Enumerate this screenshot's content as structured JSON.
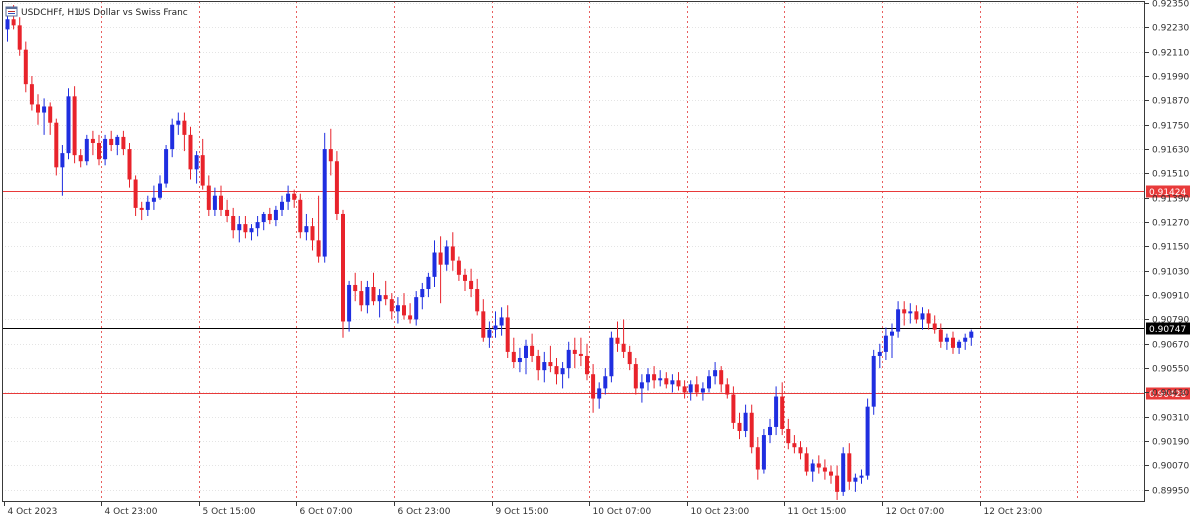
{
  "header": {
    "symbol_period": "USDCHFf, H1:",
    "description": "US Dollar vs Swiss Franc"
  },
  "icons": {
    "chart_menu": "chart-window-icon"
  },
  "colors": {
    "bull": "#1f2ee0",
    "bear": "#e8232b",
    "vgrid": "#e86060",
    "hgrid": "#e4e4e4",
    "axis": "#3a3a3a",
    "level": "#e83a3a",
    "current": "#000000"
  },
  "chart_data": {
    "type": "candlestick",
    "title": "USDCHFf, H1: US Dollar vs Swiss Franc",
    "symbol": "USDCHFf",
    "timeframe": "H1",
    "ylim": [
      0.8989,
      0.9236
    ],
    "y_ticks": [
      0.9235,
      0.9223,
      0.9211,
      0.9199,
      0.9187,
      0.9175,
      0.9163,
      0.9151,
      0.9139,
      0.9127,
      0.9115,
      0.9103,
      0.9091,
      0.9079,
      0.9067,
      0.9055,
      0.9043,
      0.9031,
      0.9019,
      0.9007,
      0.8995
    ],
    "y_tick_labels": [
      "0.92350",
      "0.92230",
      "0.92110",
      "0.91990",
      "0.91870",
      "0.91750",
      "0.91630",
      "0.91510",
      "0.91390",
      "0.91270",
      "0.91150",
      "0.91030",
      "0.90910",
      "0.90790",
      "0.90670",
      "0.90550",
      "0.90430",
      "0.90310",
      "0.90190",
      "0.90070",
      "0.89950"
    ],
    "x_labels": [
      {
        "index": 0,
        "label": "4 Oct 2023"
      },
      {
        "index": 16,
        "label": "4 Oct 23:00"
      },
      {
        "index": 32,
        "label": "5 Oct 15:00"
      },
      {
        "index": 48,
        "label": "6 Oct 07:00"
      },
      {
        "index": 64,
        "label": "6 Oct 23:00"
      },
      {
        "index": 80,
        "label": "9 Oct 15:00"
      },
      {
        "index": 96,
        "label": "10 Oct 07:00"
      },
      {
        "index": 112,
        "label": "10 Oct 23:00"
      },
      {
        "index": 128,
        "label": "11 Oct 15:00"
      },
      {
        "index": 144,
        "label": "12 Oct 07:00"
      },
      {
        "index": 160,
        "label": "12 Oct 23:00"
      }
    ],
    "levels": [
      {
        "value": 0.91424,
        "label": "0.91424",
        "style": "red"
      },
      {
        "value": 0.90747,
        "label": "0.90747",
        "style": "black"
      },
      {
        "value": 0.90428,
        "label": "0.90428",
        "style": "red"
      }
    ],
    "grid": "dotted",
    "candles": [
      [
        0.9222,
        0.923,
        0.9216,
        0.9227
      ],
      [
        0.9227,
        0.9234,
        0.9222,
        0.9224
      ],
      [
        0.9224,
        0.9228,
        0.9209,
        0.9212
      ],
      [
        0.9212,
        0.9216,
        0.9191,
        0.9195
      ],
      [
        0.9195,
        0.9199,
        0.9182,
        0.9185
      ],
      [
        0.9185,
        0.919,
        0.9175,
        0.9181
      ],
      [
        0.9181,
        0.9188,
        0.917,
        0.9184
      ],
      [
        0.9184,
        0.9186,
        0.917,
        0.9176
      ],
      [
        0.9176,
        0.9178,
        0.915,
        0.9154
      ],
      [
        0.9154,
        0.9165,
        0.914,
        0.9161
      ],
      [
        0.9161,
        0.9193,
        0.9158,
        0.9189
      ],
      [
        0.9189,
        0.9194,
        0.9156,
        0.916
      ],
      [
        0.916,
        0.9163,
        0.9154,
        0.9157
      ],
      [
        0.9157,
        0.917,
        0.9155,
        0.9168
      ],
      [
        0.9168,
        0.9172,
        0.916,
        0.9166
      ],
      [
        0.9166,
        0.917,
        0.9155,
        0.9158
      ],
      [
        0.9158,
        0.917,
        0.9155,
        0.9168
      ],
      [
        0.9168,
        0.9172,
        0.9162,
        0.9165
      ],
      [
        0.9165,
        0.917,
        0.916,
        0.9169
      ],
      [
        0.9169,
        0.9172,
        0.916,
        0.9163
      ],
      [
        0.9163,
        0.9166,
        0.9144,
        0.9148
      ],
      [
        0.9148,
        0.915,
        0.913,
        0.9134
      ],
      [
        0.9134,
        0.9137,
        0.9128,
        0.9133
      ],
      [
        0.9133,
        0.914,
        0.913,
        0.9137
      ],
      [
        0.9137,
        0.9145,
        0.9133,
        0.9139
      ],
      [
        0.9139,
        0.915,
        0.9138,
        0.9146
      ],
      [
        0.9146,
        0.9165,
        0.9144,
        0.9163
      ],
      [
        0.9163,
        0.9178,
        0.9159,
        0.9175
      ],
      [
        0.9175,
        0.9181,
        0.917,
        0.9177
      ],
      [
        0.9177,
        0.9181,
        0.9162,
        0.917
      ],
      [
        0.917,
        0.9174,
        0.9148,
        0.9153
      ],
      [
        0.9153,
        0.9162,
        0.9146,
        0.916
      ],
      [
        0.916,
        0.9168,
        0.9143,
        0.9145
      ],
      [
        0.9145,
        0.915,
        0.913,
        0.9133
      ],
      [
        0.9133,
        0.9144,
        0.913,
        0.914
      ],
      [
        0.914,
        0.9145,
        0.913,
        0.9133
      ],
      [
        0.9133,
        0.9138,
        0.9127,
        0.913
      ],
      [
        0.913,
        0.9134,
        0.9119,
        0.9123
      ],
      [
        0.9123,
        0.913,
        0.9117,
        0.9126
      ],
      [
        0.9126,
        0.913,
        0.9119,
        0.9122
      ],
      [
        0.9122,
        0.9126,
        0.9118,
        0.9124
      ],
      [
        0.9124,
        0.913,
        0.912,
        0.9127
      ],
      [
        0.9127,
        0.9132,
        0.9123,
        0.9131
      ],
      [
        0.9131,
        0.9134,
        0.9126,
        0.9128
      ],
      [
        0.9128,
        0.9135,
        0.9125,
        0.9133
      ],
      [
        0.9133,
        0.914,
        0.913,
        0.9137
      ],
      [
        0.9137,
        0.9145,
        0.9133,
        0.9141
      ],
      [
        0.9141,
        0.9143,
        0.9134,
        0.9138
      ],
      [
        0.9138,
        0.9141,
        0.9119,
        0.9122
      ],
      [
        0.9122,
        0.9131,
        0.9118,
        0.9125
      ],
      [
        0.9125,
        0.9129,
        0.9113,
        0.9118
      ],
      [
        0.9118,
        0.914,
        0.9107,
        0.911
      ],
      [
        0.911,
        0.9171,
        0.9107,
        0.9163
      ],
      [
        0.9163,
        0.9173,
        0.915,
        0.9157
      ],
      [
        0.9157,
        0.9162,
        0.9128,
        0.9131
      ],
      [
        0.9131,
        0.9133,
        0.907,
        0.9078
      ],
      [
        0.9078,
        0.9098,
        0.9073,
        0.9096
      ],
      [
        0.9096,
        0.9102,
        0.9088,
        0.9093
      ],
      [
        0.9093,
        0.9098,
        0.9083,
        0.9086
      ],
      [
        0.9086,
        0.9098,
        0.9082,
        0.9095
      ],
      [
        0.9095,
        0.9102,
        0.9086,
        0.9088
      ],
      [
        0.9088,
        0.9094,
        0.908,
        0.9091
      ],
      [
        0.9091,
        0.9098,
        0.9086,
        0.9089
      ],
      [
        0.9089,
        0.9092,
        0.9079,
        0.9083
      ],
      [
        0.9083,
        0.909,
        0.9077,
        0.9086
      ],
      [
        0.9086,
        0.9092,
        0.9079,
        0.9081
      ],
      [
        0.9081,
        0.9087,
        0.9077,
        0.9079
      ],
      [
        0.9079,
        0.9093,
        0.9076,
        0.909
      ],
      [
        0.909,
        0.9097,
        0.9084,
        0.9094
      ],
      [
        0.9094,
        0.9102,
        0.909,
        0.91
      ],
      [
        0.91,
        0.9118,
        0.9095,
        0.9112
      ],
      [
        0.9112,
        0.912,
        0.9087,
        0.9106
      ],
      [
        0.9106,
        0.9118,
        0.9103,
        0.9115
      ],
      [
        0.9115,
        0.9122,
        0.9103,
        0.9108
      ],
      [
        0.9108,
        0.911,
        0.9098,
        0.9101
      ],
      [
        0.9101,
        0.9104,
        0.9093,
        0.9098
      ],
      [
        0.9098,
        0.9104,
        0.909,
        0.9094
      ],
      [
        0.9094,
        0.9099,
        0.9081,
        0.9083
      ],
      [
        0.9083,
        0.9089,
        0.9068,
        0.907
      ],
      [
        0.907,
        0.9078,
        0.9065,
        0.9074
      ],
      [
        0.9074,
        0.9083,
        0.907,
        0.9076
      ],
      [
        0.9076,
        0.9085,
        0.9071,
        0.908
      ],
      [
        0.908,
        0.9086,
        0.906,
        0.9063
      ],
      [
        0.9063,
        0.907,
        0.9055,
        0.9058
      ],
      [
        0.9058,
        0.9065,
        0.9053,
        0.906
      ],
      [
        0.906,
        0.9069,
        0.9052,
        0.9066
      ],
      [
        0.9066,
        0.9072,
        0.9058,
        0.9061
      ],
      [
        0.9061,
        0.9064,
        0.9049,
        0.9054
      ],
      [
        0.9054,
        0.9063,
        0.9048,
        0.9058
      ],
      [
        0.9058,
        0.9066,
        0.9053,
        0.9056
      ],
      [
        0.9056,
        0.906,
        0.9047,
        0.9052
      ],
      [
        0.9052,
        0.9058,
        0.9045,
        0.9055
      ],
      [
        0.9055,
        0.9068,
        0.905,
        0.9064
      ],
      [
        0.9064,
        0.907,
        0.9055,
        0.9062
      ],
      [
        0.9062,
        0.907,
        0.9056,
        0.9061
      ],
      [
        0.9061,
        0.9067,
        0.9049,
        0.9052
      ],
      [
        0.9052,
        0.9057,
        0.9033,
        0.904
      ],
      [
        0.904,
        0.9048,
        0.9035,
        0.9045
      ],
      [
        0.9045,
        0.9055,
        0.9042,
        0.9051
      ],
      [
        0.9051,
        0.9073,
        0.9048,
        0.907
      ],
      [
        0.907,
        0.9078,
        0.9063,
        0.9067
      ],
      [
        0.9067,
        0.9079,
        0.906,
        0.9063
      ],
      [
        0.9063,
        0.9066,
        0.9054,
        0.9057
      ],
      [
        0.9057,
        0.906,
        0.9042,
        0.9045
      ],
      [
        0.9045,
        0.9052,
        0.9038,
        0.9048
      ],
      [
        0.9048,
        0.9055,
        0.9044,
        0.9052
      ],
      [
        0.9052,
        0.9056,
        0.9045,
        0.9049
      ],
      [
        0.9049,
        0.9054,
        0.9046,
        0.905
      ],
      [
        0.905,
        0.9053,
        0.9045,
        0.9047
      ],
      [
        0.9047,
        0.9052,
        0.9043,
        0.9049
      ],
      [
        0.9049,
        0.9053,
        0.9044,
        0.9046
      ],
      [
        0.9046,
        0.9049,
        0.904,
        0.9043
      ],
      [
        0.9043,
        0.9049,
        0.9039,
        0.9047
      ],
      [
        0.9047,
        0.9051,
        0.9041,
        0.9043
      ],
      [
        0.9043,
        0.9048,
        0.9039,
        0.9045
      ],
      [
        0.9045,
        0.9054,
        0.9043,
        0.9051
      ],
      [
        0.9051,
        0.9058,
        0.9047,
        0.9054
      ],
      [
        0.9054,
        0.9056,
        0.9043,
        0.9047
      ],
      [
        0.9047,
        0.905,
        0.904,
        0.9042
      ],
      [
        0.9042,
        0.9046,
        0.9025,
        0.9028
      ],
      [
        0.9028,
        0.9033,
        0.902,
        0.9024
      ],
      [
        0.9024,
        0.9037,
        0.9021,
        0.9033
      ],
      [
        0.9033,
        0.9037,
        0.9013,
        0.9016
      ],
      [
        0.9016,
        0.9021,
        0.9,
        0.9005
      ],
      [
        0.9005,
        0.9025,
        0.9003,
        0.9022
      ],
      [
        0.9022,
        0.903,
        0.9018,
        0.9026
      ],
      [
        0.9026,
        0.9046,
        0.9022,
        0.9041
      ],
      [
        0.9041,
        0.9048,
        0.9022,
        0.9025
      ],
      [
        0.9025,
        0.903,
        0.9015,
        0.9018
      ],
      [
        0.9018,
        0.9022,
        0.9013,
        0.9016
      ],
      [
        0.9016,
        0.9019,
        0.901,
        0.9013
      ],
      [
        0.9013,
        0.9016,
        0.9002,
        0.9004
      ],
      [
        0.9004,
        0.901,
        0.8999,
        0.9008
      ],
      [
        0.9008,
        0.9012,
        0.9003,
        0.9006
      ],
      [
        0.9006,
        0.901,
        0.9,
        0.9004
      ],
      [
        0.9004,
        0.9007,
        0.8998,
        0.9002
      ],
      [
        0.9002,
        0.9007,
        0.899,
        0.8994
      ],
      [
        0.8994,
        0.9016,
        0.8992,
        0.9013
      ],
      [
        0.9013,
        0.9018,
        0.8995,
        0.8999
      ],
      [
        0.8999,
        0.9003,
        0.8994,
        0.9001
      ],
      [
        0.9001,
        0.9005,
        0.8998,
        0.9002
      ],
      [
        0.9002,
        0.904,
        0.9,
        0.9036
      ],
      [
        0.9036,
        0.9064,
        0.9032,
        0.9061
      ],
      [
        0.9061,
        0.9067,
        0.9055,
        0.9063
      ],
      [
        0.9063,
        0.9075,
        0.9059,
        0.9071
      ],
      [
        0.9071,
        0.9077,
        0.906,
        0.9073
      ],
      [
        0.9073,
        0.9088,
        0.907,
        0.9084
      ],
      [
        0.9084,
        0.9088,
        0.9076,
        0.9082
      ],
      [
        0.9082,
        0.9087,
        0.9077,
        0.9083
      ],
      [
        0.9083,
        0.9086,
        0.9077,
        0.9079
      ],
      [
        0.9079,
        0.9085,
        0.9074,
        0.9082
      ],
      [
        0.9082,
        0.9084,
        0.9074,
        0.9077
      ],
      [
        0.9077,
        0.9081,
        0.9072,
        0.9074
      ],
      [
        0.9074,
        0.9077,
        0.9065,
        0.9068
      ],
      [
        0.9068,
        0.9072,
        0.9064,
        0.907
      ],
      [
        0.907,
        0.9073,
        0.9062,
        0.9065
      ],
      [
        0.9065,
        0.9069,
        0.9062,
        0.9068
      ],
      [
        0.9068,
        0.9072,
        0.9064,
        0.907
      ],
      [
        0.907,
        0.9074,
        0.9066,
        0.9073
      ]
    ]
  }
}
